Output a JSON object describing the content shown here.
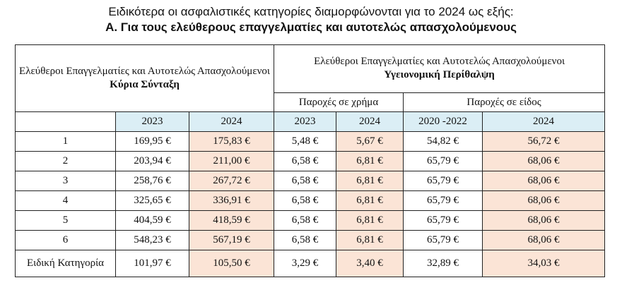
{
  "intro": "Ειδικότερα οι ασφαλιστικές κατηγορίες διαμορφώνονται για το 2024 ως εξής:",
  "heading": "Α. Για τους ελεύθερους επαγγελματίες και αυτοτελώς απασχολούμενους",
  "table": {
    "left_group": {
      "title": "Ελεύθεροι Επαγγελματίες και Αυτοτελώς Απασχολούμενοι",
      "subtitle": "Κύρια Σύνταξη"
    },
    "right_group": {
      "title": "Ελεύθεροι Επαγγελματίες και Αυτοτελώς Απασχολούμενοι",
      "subtitle": "Υγειονομική Περίθαλψη"
    },
    "sub_groups": [
      "Παροχές σε χρήμα",
      "Παροχές σε είδος"
    ],
    "years": [
      "2023",
      "2024",
      "2023",
      "2024",
      "2020 -2022",
      "2024"
    ],
    "rows": [
      {
        "category": "1",
        "values": [
          "169,95 €",
          "175,83 €",
          "5,48 €",
          "5,67 €",
          "54,82 €",
          "56,72 €"
        ]
      },
      {
        "category": "2",
        "values": [
          "203,94 €",
          "211,00 €",
          "6,58 €",
          "6,81 €",
          "65,79 €",
          "68,06 €"
        ]
      },
      {
        "category": "3",
        "values": [
          "258,76 €",
          "267,72 €",
          "6,58 €",
          "6,81 €",
          "65,79 €",
          "68,06 €"
        ]
      },
      {
        "category": "4",
        "values": [
          "325,65 €",
          "336,91 €",
          "6,58 €",
          "6,81 €",
          "65,79 €",
          "68,06 €"
        ]
      },
      {
        "category": "5",
        "values": [
          "404,59 €",
          "418,59 €",
          "6,58 €",
          "6,81 €",
          "65,79 €",
          "68,06 €"
        ]
      },
      {
        "category": "6",
        "values": [
          "548,23 €",
          "567,19 €",
          "6,58 €",
          "6,81 €",
          "65,79 €",
          "68,06 €"
        ]
      },
      {
        "category": "Ειδική Κατηγορία",
        "values": [
          "101,97 €",
          "105,50 €",
          "3,29 €",
          "3,40 €",
          "32,89 €",
          "34,03 €"
        ]
      }
    ]
  },
  "colors": {
    "header_blue": "#dbeef5",
    "highlight_peach": "#fbe4d6",
    "border": "#222222"
  }
}
